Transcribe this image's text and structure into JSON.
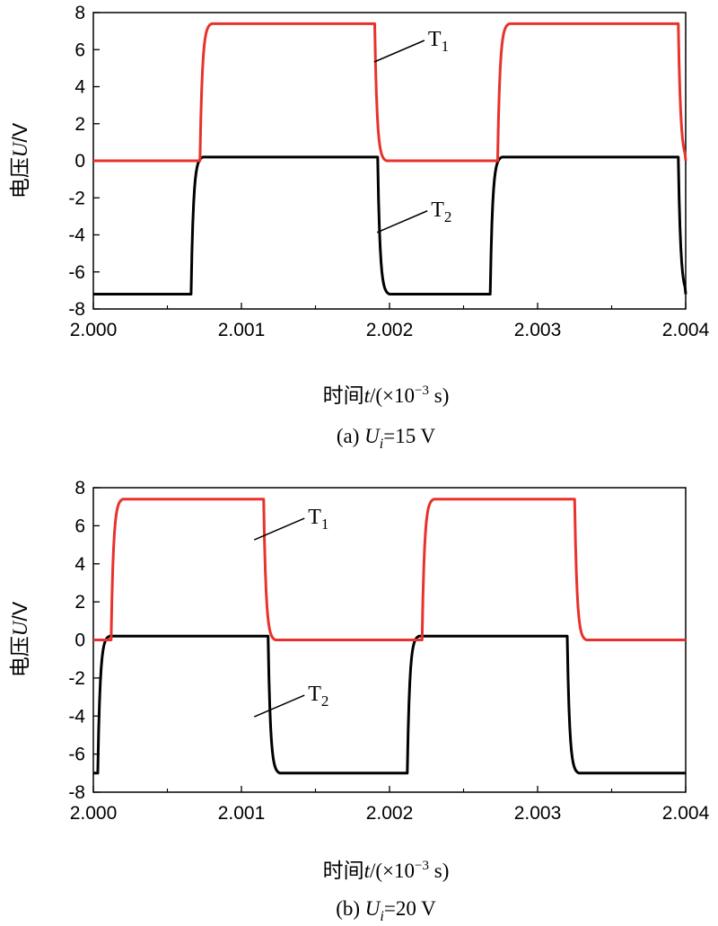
{
  "figure": {
    "panels": [
      {
        "caption_prefix": "(a) ",
        "caption_var": "U",
        "caption_sub": "i",
        "caption_suffix": "=15 V",
        "ylabel_cjk": "电压",
        "ylabel_var": "U",
        "ylabel_unit": "/V",
        "xlabel_cjk": "时间",
        "xlabel_var": "t",
        "xlabel_rest": "/(×10",
        "xlabel_exp": "−3",
        "xlabel_unit": " s)",
        "x_ticks": [
          "2.000",
          "2.001",
          "2.002",
          "2.003",
          "2.004"
        ],
        "y_ticks": [
          "8",
          "6",
          "4",
          "2",
          "0",
          "-2",
          "-4",
          "-6",
          "-8"
        ],
        "label_T1": "T",
        "label_T1_sub": "1",
        "label_T2": "T",
        "label_T2_sub": "2"
      },
      {
        "caption_prefix": "(b) ",
        "caption_var": "U",
        "caption_sub": "i",
        "caption_suffix": "=20 V",
        "ylabel_cjk": "电压",
        "ylabel_var": "U",
        "ylabel_unit": "/V",
        "xlabel_cjk": "时间",
        "xlabel_var": "t",
        "xlabel_rest": "/(×10",
        "xlabel_exp": "−3",
        "xlabel_unit": " s)",
        "x_ticks": [
          "2.000",
          "2.001",
          "2.002",
          "2.003",
          "2.004"
        ],
        "y_ticks": [
          "8",
          "6",
          "4",
          "2",
          "0",
          "-2",
          "-4",
          "-6",
          "-8"
        ],
        "label_T1": "T",
        "label_T1_sub": "1",
        "label_T2": "T",
        "label_T2_sub": "2"
      }
    ]
  },
  "chart_data": [
    {
      "type": "line",
      "title": "",
      "xlabel": "时间t/(×10^-3 s)",
      "ylabel": "电压U/V",
      "xlim": [
        2.0,
        2.004
      ],
      "ylim": [
        -8,
        8
      ],
      "grid": false,
      "colors": {
        "T1": "#e8322b",
        "T2": "#000000"
      },
      "series": [
        {
          "name": "T1",
          "transitions": [
            {
              "x": 2.0,
              "dir": "start",
              "y": 0.0
            },
            {
              "x": 2.00072,
              "dir": "rise",
              "y": 7.4
            },
            {
              "x": 2.0019,
              "dir": "fall",
              "y": 0.0
            },
            {
              "x": 2.00273,
              "dir": "rise",
              "y": 7.4
            },
            {
              "x": 2.00395,
              "dir": "fall",
              "y": 0.0
            }
          ]
        },
        {
          "name": "T2",
          "transitions": [
            {
              "x": 2.0,
              "dir": "start",
              "y": -7.2
            },
            {
              "x": 2.00066,
              "dir": "rise",
              "y": 0.2
            },
            {
              "x": 2.00192,
              "dir": "fall",
              "y": -7.2
            },
            {
              "x": 2.00268,
              "dir": "rise",
              "y": 0.2
            },
            {
              "x": 2.00395,
              "dir": "fall",
              "y": -7.2
            }
          ]
        }
      ],
      "annotations": [
        {
          "text": "T1",
          "x": 2.00226,
          "y": 6.4
        },
        {
          "text": "T2",
          "x": 2.00228,
          "y": -2.8
        }
      ]
    },
    {
      "type": "line",
      "title": "",
      "xlabel": "时间t/(×10^-3 s)",
      "ylabel": "电压U/V",
      "xlim": [
        2.0,
        2.004
      ],
      "ylim": [
        -8,
        8
      ],
      "grid": false,
      "colors": {
        "T1": "#e8322b",
        "T2": "#000000"
      },
      "series": [
        {
          "name": "T1",
          "transitions": [
            {
              "x": 2.0,
              "dir": "start",
              "y": 0.0
            },
            {
              "x": 2.00012,
              "dir": "rise",
              "y": 7.4
            },
            {
              "x": 2.00115,
              "dir": "fall",
              "y": 0.0
            },
            {
              "x": 2.00222,
              "dir": "rise",
              "y": 7.4
            },
            {
              "x": 2.00325,
              "dir": "fall",
              "y": 0.0
            }
          ]
        },
        {
          "name": "T2",
          "transitions": [
            {
              "x": 2.0,
              "dir": "start",
              "y": -7.0
            },
            {
              "x": 2.00003,
              "dir": "rise",
              "y": 0.2
            },
            {
              "x": 2.00118,
              "dir": "fall",
              "y": -7.0
            },
            {
              "x": 2.00212,
              "dir": "rise",
              "y": 0.2
            },
            {
              "x": 2.0032,
              "dir": "fall",
              "y": -7.0
            }
          ]
        }
      ],
      "annotations": [
        {
          "text": "T1",
          "x": 2.00145,
          "y": 6.3
        },
        {
          "text": "T2",
          "x": 2.00145,
          "y": -3.0
        }
      ]
    }
  ]
}
